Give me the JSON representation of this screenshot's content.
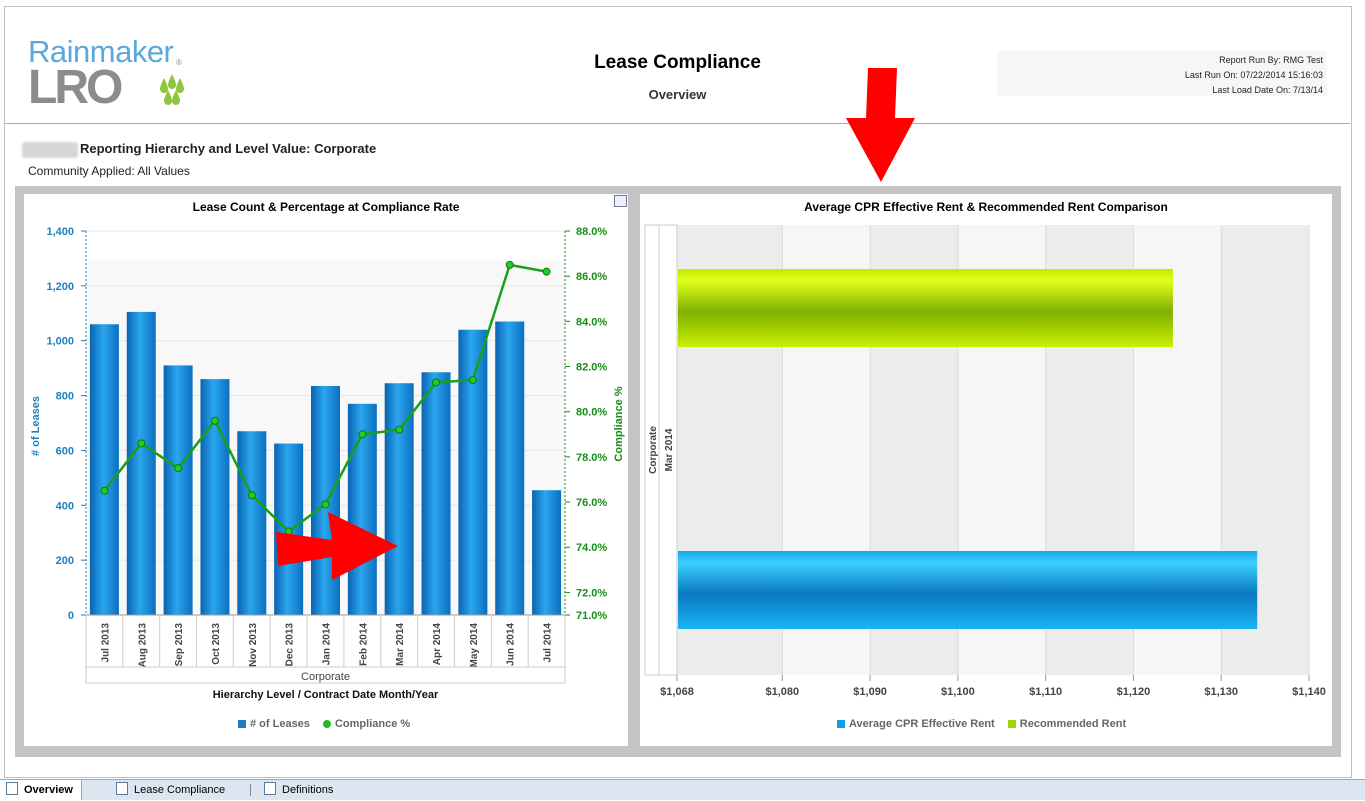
{
  "header": {
    "logo_top": "Rainmaker",
    "logo_bottom": "LRO",
    "logo_reg": "®",
    "title": "Lease Compliance",
    "subtitle": "Overview",
    "meta": {
      "run_by": "Report Run By:  RMG Test",
      "last_run": "Last Run On: 07/22/2014 15:16:03",
      "last_load": "Last Load Date On: 7/13/14"
    }
  },
  "filters": {
    "hierarchy": "Reporting Hierarchy and Level Value: Corporate",
    "community": "Community Applied: All Values"
  },
  "tabs": [
    {
      "label": "Overview",
      "icon": "report-icon"
    },
    {
      "label": "Lease Compliance",
      "icon": "report-search-icon"
    },
    {
      "label": "Definitions",
      "icon": "document-icon"
    }
  ],
  "colors": {
    "bar_blue": "#1a8fd8",
    "line_green": "#19a019",
    "axis_left": "#1f7fbf",
    "axis_right": "#178c17",
    "rec_rent": "#a6d400",
    "eff_rent": "#12a9e6",
    "annotation_red": "#ff0000"
  },
  "chart_data": [
    {
      "type": "bar",
      "title": "Lease Count & Percentage at Compliance Rate",
      "categories": [
        "Jul 2013",
        "Aug 2013",
        "Sep 2013",
        "Oct 2013",
        "Nov 2013",
        "Dec 2013",
        "Jan 2014",
        "Feb 2014",
        "Mar 2014",
        "Apr 2014",
        "May 2014",
        "Jun 2014",
        "Jul 2014"
      ],
      "group_label": "Corporate",
      "xlabel": "Hierarchy Level / Contract Date Month/Year",
      "ylabel": "# of Leases",
      "y2label": "Compliance %",
      "ylim": [
        0,
        1400
      ],
      "yticks": [
        "0",
        "200",
        "400",
        "600",
        "800",
        "1,000",
        "1,200",
        "1,400"
      ],
      "y2ticks": [
        "71.0%",
        "72.0%",
        "74.0%",
        "76.0%",
        "78.0%",
        "80.0%",
        "82.0%",
        "84.0%",
        "86.0%",
        "88.0%"
      ],
      "series": [
        {
          "name": "# of Leases",
          "kind": "bar",
          "values": [
            1060,
            1105,
            910,
            860,
            670,
            625,
            835,
            770,
            845,
            885,
            1040,
            1070,
            455
          ]
        },
        {
          "name": "Compliance %",
          "kind": "line",
          "values": [
            76.5,
            78.6,
            77.5,
            79.6,
            76.3,
            74.7,
            75.9,
            79.0,
            79.2,
            81.3,
            81.4,
            86.5,
            86.2
          ]
        }
      ],
      "y2lim": [
        71,
        88
      ],
      "legend": "bottom",
      "grid": true
    },
    {
      "type": "bar",
      "orientation": "horizontal",
      "title": "Average CPR Effective Rent & Recommended Rent Comparison",
      "categories": [
        "Corporate / Mar 2014"
      ],
      "category_labels": [
        "Corporate",
        "Mar 2014"
      ],
      "xlim": [
        1068,
        1140
      ],
      "xticks": [
        "$1,068",
        "$1,080",
        "$1,090",
        "$1,100",
        "$1,110",
        "$1,120",
        "$1,130",
        "$1,140"
      ],
      "series": [
        {
          "name": "Recommended Rent",
          "values": [
            1124.5
          ]
        },
        {
          "name": "Average CPR Effective Rent",
          "values": [
            1134.1
          ]
        }
      ],
      "legend": "bottom",
      "grid": true
    }
  ]
}
